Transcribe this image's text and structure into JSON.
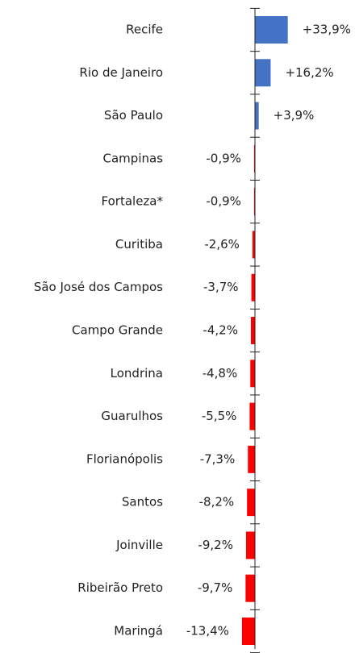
{
  "chart_data": {
    "type": "bar",
    "orientation": "horizontal",
    "categories": [
      "Recife",
      "Rio de Janeiro",
      "São Paulo",
      "Campinas",
      "Fortaleza*",
      "Curitiba",
      "São José dos Campos",
      "Campo Grande",
      "Londrina",
      "Guarulhos",
      "Florianópolis",
      "Santos",
      "Joinville",
      "Ribeirão Preto",
      "Maringá"
    ],
    "values": [
      33.9,
      16.2,
      3.9,
      -0.9,
      -0.9,
      -2.6,
      -3.7,
      -4.2,
      -4.8,
      -5.5,
      -7.3,
      -8.2,
      -9.2,
      -9.7,
      -13.4
    ],
    "value_labels": [
      "+33,9%",
      "+16,2%",
      "+3,9%",
      "-0,9%",
      "-0,9%",
      "-2,6%",
      "-3,7%",
      "-4,2%",
      "-4,8%",
      "-5,5%",
      "-7,3%",
      "-8,2%",
      "-9,2%",
      "-9,7%",
      "-13,4%"
    ],
    "positive_color": "#4472c4",
    "negative_color": "#ff0000",
    "xlim": [
      -20,
      40
    ]
  }
}
